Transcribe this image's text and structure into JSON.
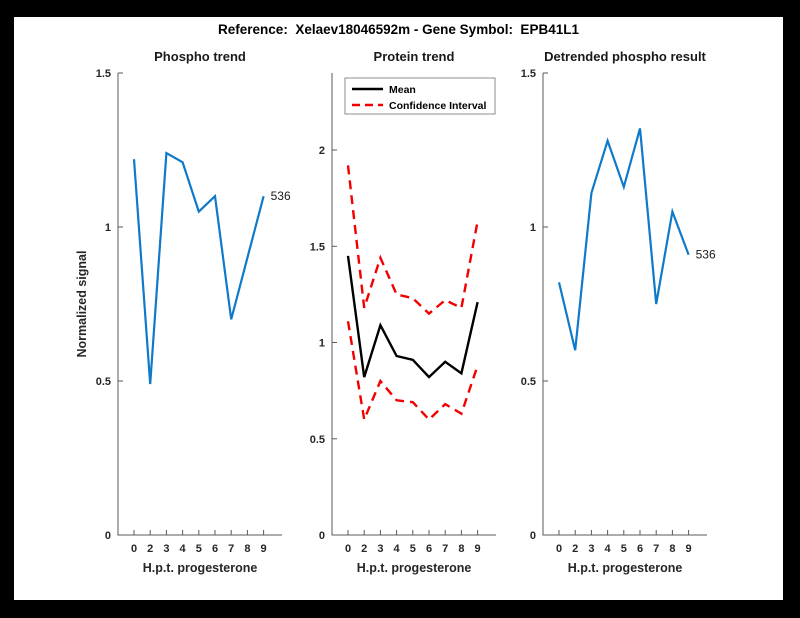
{
  "figure": {
    "title": "Reference:  Xelaev18046592m - Gene Symbol:  EPB41L1",
    "colors": {
      "blue": "#0f7ac9",
      "red": "#f20000",
      "black": "#000000",
      "axis": "#595959",
      "text": "#262626",
      "background": "#ffffff",
      "frame": "#000000"
    }
  },
  "chart_data": [
    {
      "type": "line",
      "title": "Phospho trend",
      "xlabel": "H.p.t. progesterone",
      "ylabel": "Normalized signal",
      "x_tick_labels": [
        "0",
        "2",
        "3",
        "4",
        "5",
        "6",
        "7",
        "8",
        "9"
      ],
      "y_ticks": [
        0,
        0.5,
        1,
        1.5
      ],
      "y_tick_labels": [
        "0",
        "0.5",
        "1",
        "1.5"
      ],
      "ylim": [
        0,
        1.5
      ],
      "grid": false,
      "legend": null,
      "end_label": "536",
      "series": [
        {
          "name": "phospho-signal",
          "color": "blue",
          "style": "solid",
          "values": [
            1.22,
            0.49,
            1.24,
            1.21,
            1.05,
            1.1,
            0.7,
            0.9,
            1.1
          ]
        }
      ]
    },
    {
      "type": "line",
      "title": "Protein trend",
      "xlabel": "H.p.t. progesterone",
      "ylabel": "",
      "x_tick_labels": [
        "0",
        "2",
        "3",
        "4",
        "5",
        "6",
        "7",
        "8",
        "9"
      ],
      "y_ticks": [
        0,
        0.5,
        1,
        1.5,
        2
      ],
      "y_tick_labels": [
        "0",
        "0.5",
        "1",
        "1.5",
        "2"
      ],
      "ylim": [
        0,
        2.4
      ],
      "grid": false,
      "end_label": null,
      "legend": {
        "position": "top-left",
        "entries": [
          {
            "label": "Mean",
            "color": "black",
            "style": "solid"
          },
          {
            "label": "Confidence Interval",
            "color": "red",
            "style": "dashed"
          }
        ]
      },
      "series": [
        {
          "name": "mean",
          "color": "black",
          "style": "solid",
          "values": [
            1.45,
            0.82,
            1.09,
            0.93,
            0.91,
            0.82,
            0.9,
            0.84,
            1.21
          ]
        },
        {
          "name": "ci-upper",
          "color": "red",
          "style": "dashed",
          "values": [
            1.92,
            1.18,
            1.44,
            1.25,
            1.23,
            1.15,
            1.22,
            1.18,
            1.63
          ]
        },
        {
          "name": "ci-lower",
          "color": "red",
          "style": "dashed",
          "values": [
            1.11,
            0.6,
            0.8,
            0.7,
            0.69,
            0.6,
            0.68,
            0.63,
            0.88
          ]
        }
      ]
    },
    {
      "type": "line",
      "title": "Detrended phospho result",
      "xlabel": "H.p.t. progesterone",
      "ylabel": "",
      "x_tick_labels": [
        "0",
        "2",
        "3",
        "4",
        "5",
        "6",
        "7",
        "8",
        "9"
      ],
      "y_ticks": [
        0,
        0.5,
        1,
        1.5
      ],
      "y_tick_labels": [
        "0",
        "0.5",
        "1",
        "1.5"
      ],
      "ylim": [
        0,
        1.5
      ],
      "grid": false,
      "legend": null,
      "end_label": "536",
      "series": [
        {
          "name": "detrended-phospho",
          "color": "blue",
          "style": "solid",
          "values": [
            0.82,
            0.6,
            1.11,
            1.28,
            1.13,
            1.32,
            0.75,
            1.05,
            0.91
          ]
        }
      ]
    }
  ]
}
